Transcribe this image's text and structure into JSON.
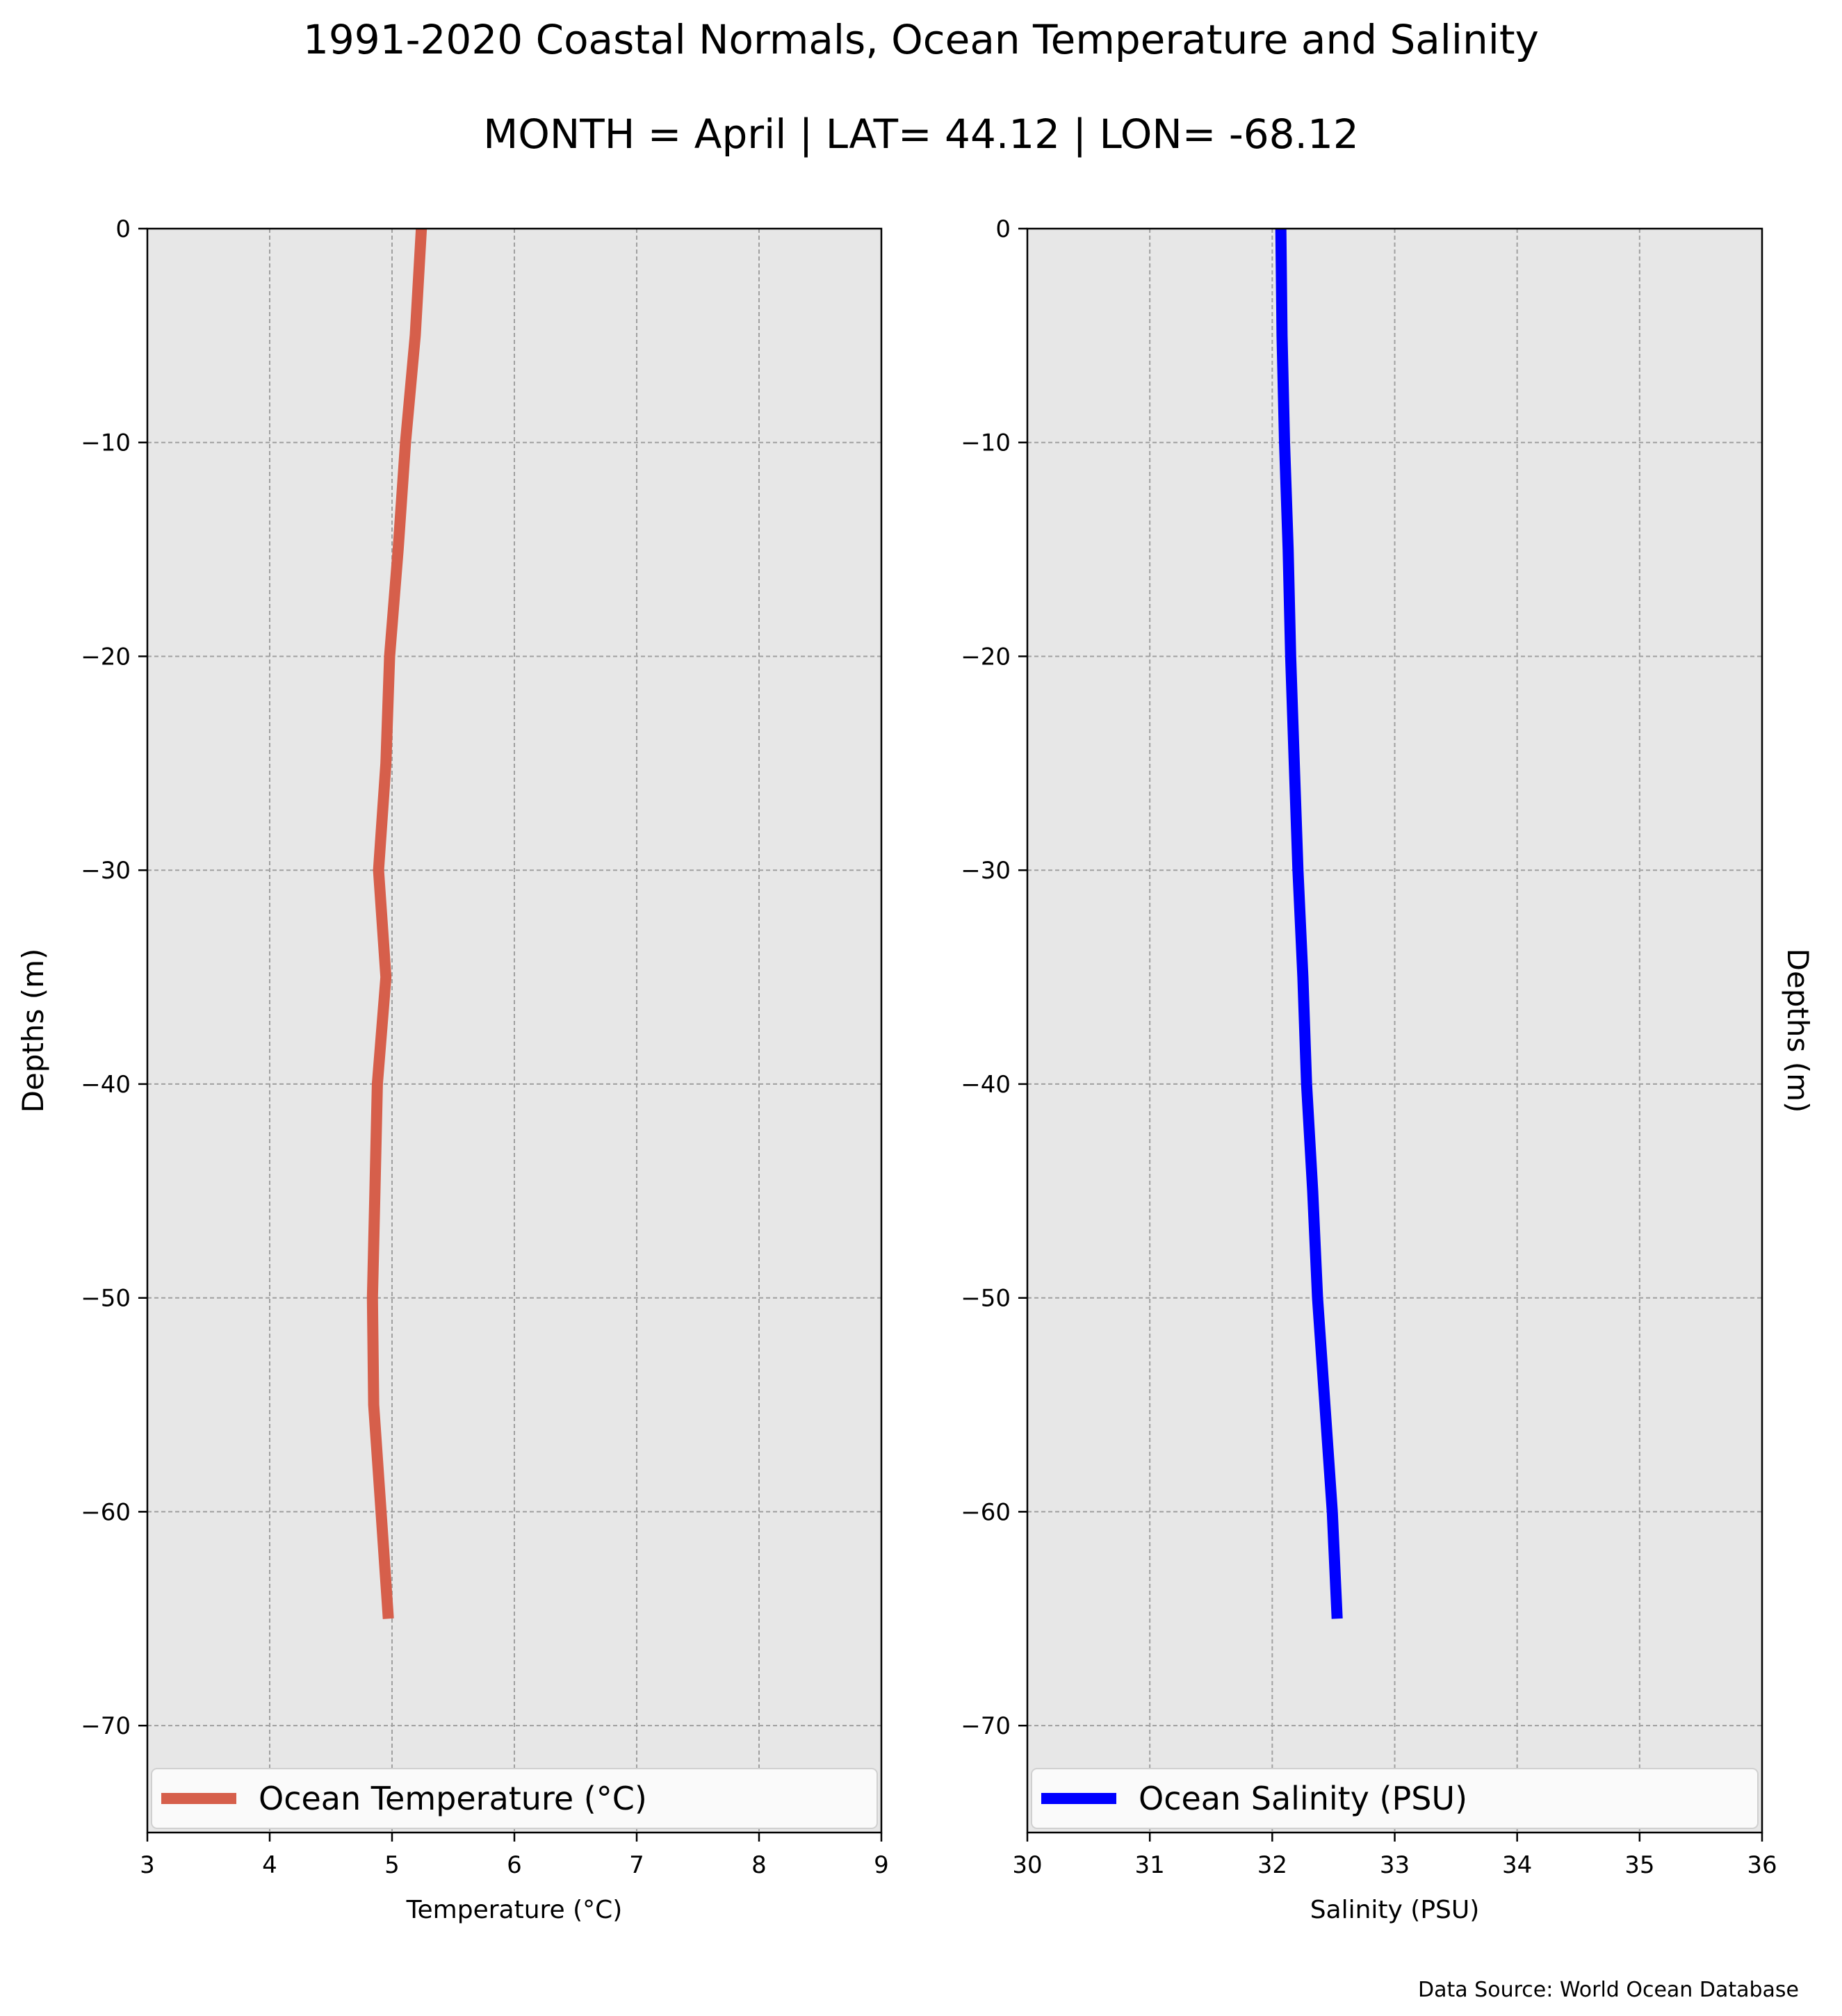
{
  "title": "1991-2020 Coastal Normals, Ocean Temperature and Salinity",
  "subtitle": "MONTH = April | LAT= 44.12 | LON= -68.12",
  "source": "Data Source: World Ocean Database",
  "chart_data": [
    {
      "type": "line",
      "series": [
        {
          "name": "Ocean Temperature (°C)",
          "color": "#d65f4b",
          "x": [
            5.24,
            5.19,
            5.11,
            5.05,
            4.98,
            4.95,
            4.89,
            4.95,
            4.88,
            4.86,
            4.84,
            4.85,
            4.91,
            4.97
          ],
          "y": [
            0,
            -5,
            -10,
            -15,
            -20,
            -25,
            -30,
            -35,
            -40,
            -45,
            -50,
            -55,
            -60,
            -65
          ]
        }
      ],
      "xlabel": "Temperature (°C)",
      "ylabel": "Depths (m)",
      "xlim": [
        3,
        9
      ],
      "ylim": [
        -75,
        0
      ],
      "xticks": [
        3,
        4,
        5,
        6,
        7,
        8,
        9
      ],
      "yticks": [
        0,
        -10,
        -20,
        -30,
        -40,
        -50,
        -60,
        -70
      ],
      "xtick_labels": [
        "3",
        "4",
        "5",
        "6",
        "7",
        "8",
        "9"
      ],
      "ytick_labels": [
        "0",
        "−10",
        "−20",
        "−30",
        "−40",
        "−50",
        "−60",
        "−70"
      ],
      "grid": true,
      "legend": "bottom",
      "ylabel_side": "left"
    },
    {
      "type": "line",
      "series": [
        {
          "name": "Ocean Salinity (PSU)",
          "color": "#0000ff",
          "x": [
            32.07,
            32.08,
            32.1,
            32.13,
            32.15,
            32.18,
            32.21,
            32.25,
            32.28,
            32.33,
            32.37,
            32.43,
            32.49,
            32.53
          ],
          "y": [
            0,
            -5,
            -10,
            -15,
            -20,
            -25,
            -30,
            -35,
            -40,
            -45,
            -50,
            -55,
            -60,
            -65
          ]
        }
      ],
      "xlabel": "Salinity (PSU)",
      "ylabel": "Depths (m)",
      "xlim": [
        30,
        36
      ],
      "ylim": [
        -75,
        0
      ],
      "xticks": [
        30,
        31,
        32,
        33,
        34,
        35,
        36
      ],
      "yticks": [
        0,
        -10,
        -20,
        -30,
        -40,
        -50,
        -60,
        -70
      ],
      "xtick_labels": [
        "30",
        "31",
        "32",
        "33",
        "34",
        "35",
        "36"
      ],
      "ytick_labels": [
        "0",
        "−10",
        "−20",
        "−30",
        "−40",
        "−50",
        "−60",
        "−70"
      ],
      "grid": true,
      "legend": "bottom",
      "ylabel_side": "right"
    }
  ]
}
